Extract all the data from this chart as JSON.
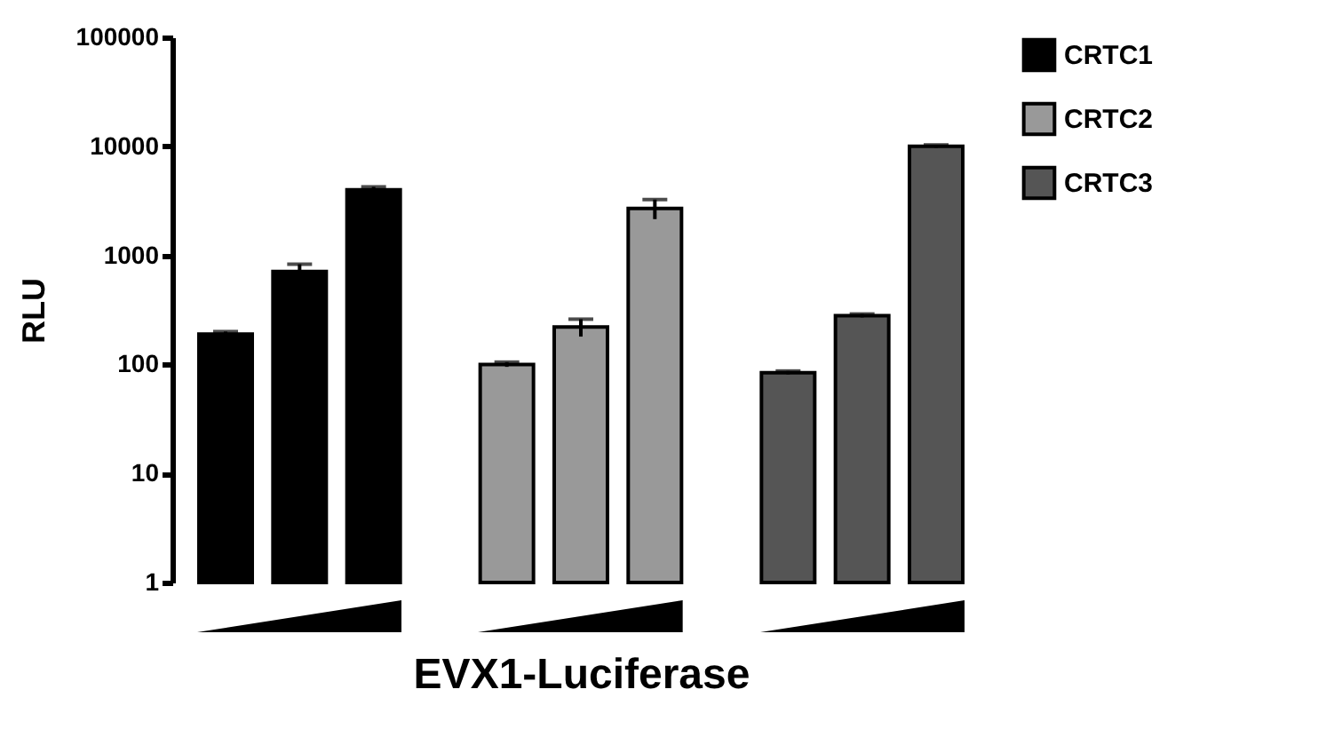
{
  "chart_data": {
    "type": "bar",
    "xlabel": "EVX1-Luciferase",
    "ylabel": "RLU",
    "categories": [
      null,
      null,
      null,
      null,
      null,
      null,
      null,
      null,
      null
    ],
    "series": [
      {
        "name": "CRTC1",
        "color": "#000000",
        "values": [
          190,
          710,
          4000,
          null,
          null,
          null,
          null,
          null,
          null
        ],
        "errors": [
          10,
          120,
          250,
          null,
          null,
          null,
          null,
          null,
          null
        ]
      },
      {
        "name": "CRTC2",
        "color": "#999999",
        "values": [
          null,
          null,
          null,
          100,
          220,
          2700,
          null,
          null,
          null
        ],
        "errors": [
          null,
          null,
          null,
          5,
          40,
          550,
          null,
          null,
          null
        ]
      },
      {
        "name": "CRTC3",
        "color": "#555555",
        "values": [
          null,
          null,
          null,
          null,
          null,
          null,
          84,
          280,
          10000
        ],
        "errors": [
          null,
          null,
          null,
          null,
          null,
          null,
          3,
          10,
          300
        ]
      }
    ],
    "log": "y",
    "ylim": [
      1,
      100000
    ],
    "yticks": [
      1,
      10,
      100,
      1000,
      10000,
      100000
    ],
    "grid": false,
    "legend": "top right",
    "stacked": true
  }
}
